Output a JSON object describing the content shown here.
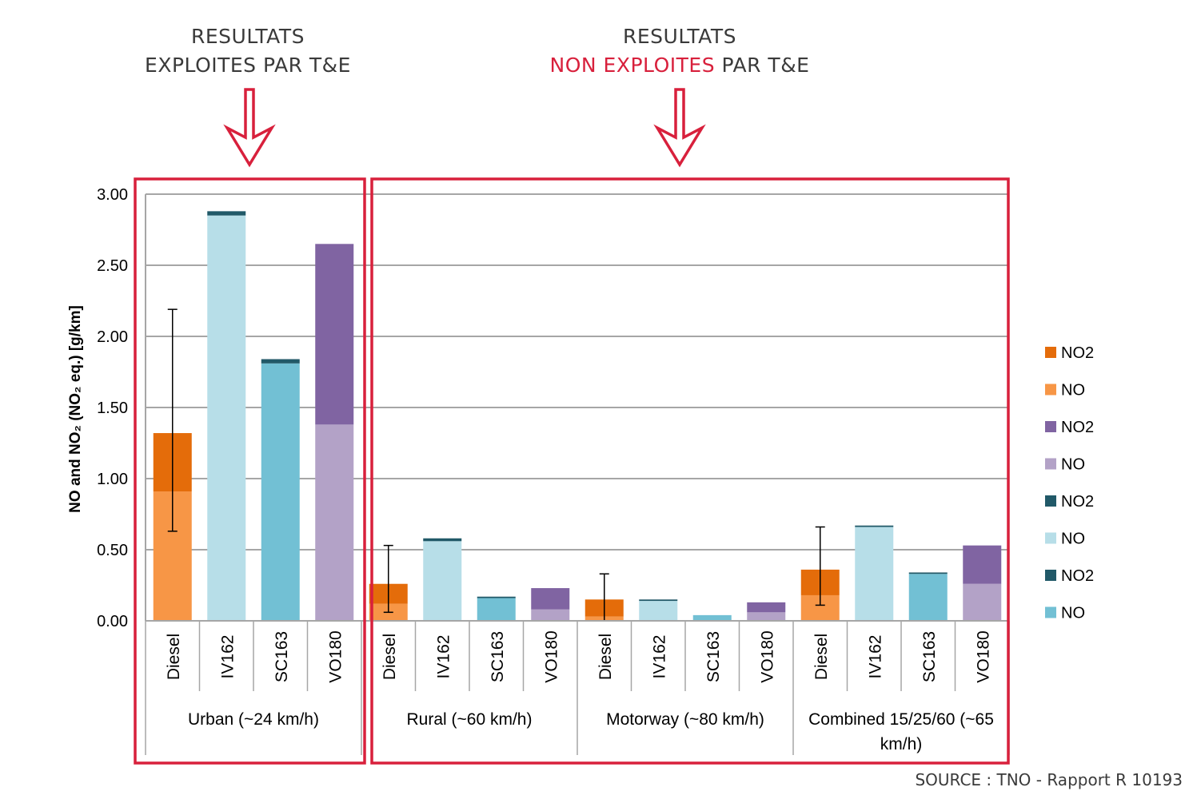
{
  "headings": [
    {
      "line1": "RESULTATS",
      "line2_prefix": "",
      "line2_highlight": "",
      "line2_suffix": "EXPLOITES PAR T&E"
    },
    {
      "line1": "RESULTATS",
      "line2_prefix": "",
      "line2_highlight": "NON EXPLOITES",
      "line2_suffix": " PAR T&E"
    }
  ],
  "colors": {
    "highlight": "#d8203c",
    "diesel_no2": "#e46c0a",
    "diesel_no": "#f79646",
    "vo_no2": "#8064a2",
    "vo_no": "#b3a2c7",
    "iv_no2": "#215968",
    "iv_no": "#b7dee8",
    "sc_no2": "#215968",
    "sc_no": "#72c0d4"
  },
  "source": "SOURCE : TNO - Rapport R 10193",
  "chart_data": {
    "type": "bar",
    "stacked": true,
    "title": "",
    "ylabel": "NO and NO₂ (NO₂ eq.) [g/km]",
    "ylim": [
      0,
      3.0
    ],
    "yticks": [
      "0.00",
      "0.50",
      "1.00",
      "1.50",
      "2.00",
      "2.50",
      "3.00"
    ],
    "grid": true,
    "legend_position": "right",
    "groups": [
      {
        "label": "Urban (~24 km/h)",
        "categories": [
          "Diesel",
          "IV162",
          "SC163",
          "VO180"
        ]
      },
      {
        "label": "Rural (~60 km/h)",
        "categories": [
          "Diesel",
          "IV162",
          "SC163",
          "VO180"
        ]
      },
      {
        "label": "Motorway (~80 km/h)",
        "categories": [
          "Diesel",
          "IV162",
          "SC163",
          "VO180"
        ]
      },
      {
        "label": "Combined 15/25/60 (~65 km/h)",
        "categories": [
          "Diesel",
          "IV162",
          "SC163",
          "VO180"
        ]
      }
    ],
    "bars": [
      {
        "group": 0,
        "category": "Diesel",
        "no": 0.91,
        "no2": 0.41,
        "err": [
          0.63,
          2.19
        ],
        "colors": [
          "#f79646",
          "#e46c0a"
        ]
      },
      {
        "group": 0,
        "category": "IV162",
        "no": 2.85,
        "no2": 0.03,
        "colors": [
          "#b7dee8",
          "#215968"
        ]
      },
      {
        "group": 0,
        "category": "SC163",
        "no": 1.81,
        "no2": 0.03,
        "colors": [
          "#72c0d4",
          "#215968"
        ]
      },
      {
        "group": 0,
        "category": "VO180",
        "no": 1.38,
        "no2": 1.27,
        "colors": [
          "#b3a2c7",
          "#8064a2"
        ]
      },
      {
        "group": 1,
        "category": "Diesel",
        "no": 0.12,
        "no2": 0.14,
        "err": [
          0.06,
          0.53
        ],
        "colors": [
          "#f79646",
          "#e46c0a"
        ]
      },
      {
        "group": 1,
        "category": "IV162",
        "no": 0.56,
        "no2": 0.02,
        "colors": [
          "#b7dee8",
          "#215968"
        ]
      },
      {
        "group": 1,
        "category": "SC163",
        "no": 0.16,
        "no2": 0.01,
        "colors": [
          "#72c0d4",
          "#215968"
        ]
      },
      {
        "group": 1,
        "category": "VO180",
        "no": 0.08,
        "no2": 0.15,
        "colors": [
          "#b3a2c7",
          "#8064a2"
        ]
      },
      {
        "group": 2,
        "category": "Diesel",
        "no": 0.03,
        "no2": 0.12,
        "err": [
          0.0,
          0.33
        ],
        "colors": [
          "#f79646",
          "#e46c0a"
        ]
      },
      {
        "group": 2,
        "category": "IV162",
        "no": 0.14,
        "no2": 0.01,
        "colors": [
          "#b7dee8",
          "#215968"
        ]
      },
      {
        "group": 2,
        "category": "SC163",
        "no": 0.04,
        "no2": 0.0,
        "colors": [
          "#72c0d4",
          "#215968"
        ]
      },
      {
        "group": 2,
        "category": "VO180",
        "no": 0.06,
        "no2": 0.07,
        "colors": [
          "#b3a2c7",
          "#8064a2"
        ]
      },
      {
        "group": 3,
        "category": "Diesel",
        "no": 0.18,
        "no2": 0.18,
        "err": [
          0.11,
          0.66
        ],
        "colors": [
          "#f79646",
          "#e46c0a"
        ]
      },
      {
        "group": 3,
        "category": "IV162",
        "no": 0.66,
        "no2": 0.01,
        "colors": [
          "#b7dee8",
          "#215968"
        ]
      },
      {
        "group": 3,
        "category": "SC163",
        "no": 0.33,
        "no2": 0.01,
        "colors": [
          "#72c0d4",
          "#215968"
        ]
      },
      {
        "group": 3,
        "category": "VO180",
        "no": 0.26,
        "no2": 0.27,
        "colors": [
          "#b3a2c7",
          "#8064a2"
        ]
      }
    ],
    "legend": [
      {
        "label": "NO2",
        "color": "#e46c0a"
      },
      {
        "label": "NO",
        "color": "#f79646"
      },
      {
        "label": "NO2",
        "color": "#8064a2"
      },
      {
        "label": "NO",
        "color": "#b3a2c7"
      },
      {
        "label": "NO2",
        "color": "#215968"
      },
      {
        "label": "NO",
        "color": "#b7dee8"
      },
      {
        "label": "NO2",
        "color": "#215968"
      },
      {
        "label": "NO",
        "color": "#72c0d4"
      }
    ]
  }
}
